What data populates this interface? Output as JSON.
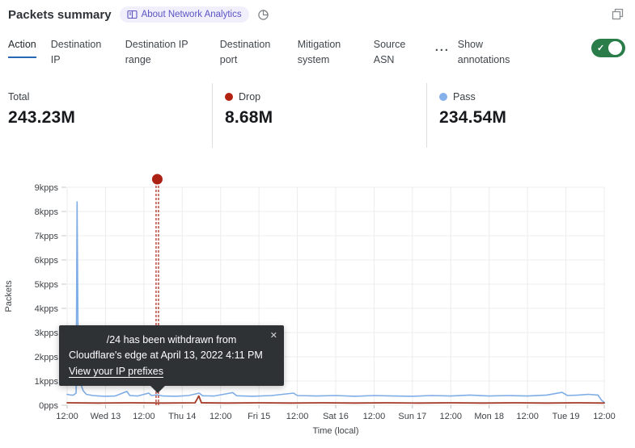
{
  "header": {
    "title": "Packets summary",
    "badge_label": "About Network Analytics"
  },
  "icons": {
    "ellipsis": "···",
    "check": "✓",
    "close": "✕"
  },
  "tabs": {
    "items": [
      {
        "label": "Action",
        "active": true
      },
      {
        "label": "Destination IP",
        "active": false
      },
      {
        "label": "Destination IP range",
        "active": false
      },
      {
        "label": "Destination port",
        "active": false
      },
      {
        "label": "Mitigation system",
        "active": false
      },
      {
        "label": "Source ASN",
        "active": false
      }
    ],
    "annotations_label": "Show annotations",
    "annotations_toggle_state": "on"
  },
  "stats": {
    "items": [
      {
        "label": "Total",
        "value": "243.23M",
        "dot_color": null
      },
      {
        "label": "Drop",
        "value": "8.68M",
        "dot_color": "#b2220f"
      },
      {
        "label": "Pass",
        "value": "234.54M",
        "dot_color": "#85b1ea"
      }
    ]
  },
  "tooltip": {
    "line1": "/24 has been withdrawn from",
    "line2": "Cloudflare's edge at April 13, 2022 4:11 PM",
    "link_label": "View your IP prefixes"
  },
  "chart_data": {
    "type": "line",
    "title": "Packets summary",
    "xlabel": "Time (local)",
    "ylabel": "Packets",
    "x_range_hours": [
      0,
      168
    ],
    "x_ticks": [
      "12:00",
      "Wed 13",
      "12:00",
      "Thu 14",
      "12:00",
      "Fri 15",
      "12:00",
      "Sat 16",
      "12:00",
      "Sun 17",
      "12:00",
      "Mon 18",
      "12:00",
      "Tue 19",
      "12:00"
    ],
    "y_ticks": [
      "9kpps",
      "8kpps",
      "7kpps",
      "6kpps",
      "5kpps",
      "4kpps",
      "3kpps",
      "2kpps",
      "1kpps",
      "0pps"
    ],
    "ylim": [
      0,
      9
    ],
    "grid": true,
    "legend_position": "stats-row-above",
    "series": [
      {
        "name": "Pass",
        "color": "#7fade6",
        "unit": "kpps",
        "points": [
          [
            0,
            0.45
          ],
          [
            1,
            0.42
          ],
          [
            2,
            0.42
          ],
          [
            2.8,
            0.5
          ],
          [
            3.1,
            8.4
          ],
          [
            3.5,
            1.4
          ],
          [
            4.1,
            0.95
          ],
          [
            5,
            0.6
          ],
          [
            6,
            0.45
          ],
          [
            8,
            0.4
          ],
          [
            10,
            0.38
          ],
          [
            12,
            0.37
          ],
          [
            15,
            0.38
          ],
          [
            18.7,
            0.57
          ],
          [
            19.6,
            0.4
          ],
          [
            22,
            0.38
          ],
          [
            25.5,
            0.5
          ],
          [
            26.4,
            0.4
          ],
          [
            28.2,
            0.43
          ],
          [
            30,
            0.38
          ],
          [
            34,
            0.37
          ],
          [
            38,
            0.4
          ],
          [
            41.3,
            0.5
          ],
          [
            42.4,
            0.39
          ],
          [
            46,
            0.38
          ],
          [
            51.8,
            0.52
          ],
          [
            53,
            0.39
          ],
          [
            58,
            0.37
          ],
          [
            64,
            0.4
          ],
          [
            70.8,
            0.5
          ],
          [
            72,
            0.4
          ],
          [
            78,
            0.38
          ],
          [
            84,
            0.4
          ],
          [
            90,
            0.37
          ],
          [
            96,
            0.4
          ],
          [
            102,
            0.38
          ],
          [
            108,
            0.37
          ],
          [
            114,
            0.4
          ],
          [
            120,
            0.38
          ],
          [
            126,
            0.42
          ],
          [
            132,
            0.38
          ],
          [
            138,
            0.4
          ],
          [
            144,
            0.38
          ],
          [
            150,
            0.42
          ],
          [
            154.8,
            0.53
          ],
          [
            156.5,
            0.4
          ],
          [
            160,
            0.42
          ],
          [
            163,
            0.45
          ],
          [
            166,
            0.42
          ],
          [
            167.2,
            0.2
          ],
          [
            168,
            0.12
          ]
        ]
      },
      {
        "name": "Drop",
        "color": "#a33b28",
        "unit": "kpps",
        "points": [
          [
            0,
            0.1
          ],
          [
            10,
            0.09
          ],
          [
            20,
            0.1
          ],
          [
            30,
            0.09
          ],
          [
            40,
            0.1
          ],
          [
            41.2,
            0.38
          ],
          [
            42,
            0.1
          ],
          [
            50,
            0.09
          ],
          [
            60,
            0.1
          ],
          [
            70,
            0.09
          ],
          [
            80,
            0.1
          ],
          [
            90,
            0.09
          ],
          [
            100,
            0.1
          ],
          [
            110,
            0.09
          ],
          [
            120,
            0.1
          ],
          [
            130,
            0.09
          ],
          [
            140,
            0.1
          ],
          [
            150,
            0.09
          ],
          [
            160,
            0.1
          ],
          [
            168,
            0.09
          ]
        ]
      }
    ],
    "annotation": {
      "x_hours": 28.2,
      "marker_color": "#ab2113",
      "line_style": "double-dashed-vertical",
      "label_line1": "/24 has been withdrawn from",
      "label_line2": "Cloudflare's edge at April 13, 2022 4:11 PM",
      "label_link": "View your IP prefixes"
    }
  }
}
